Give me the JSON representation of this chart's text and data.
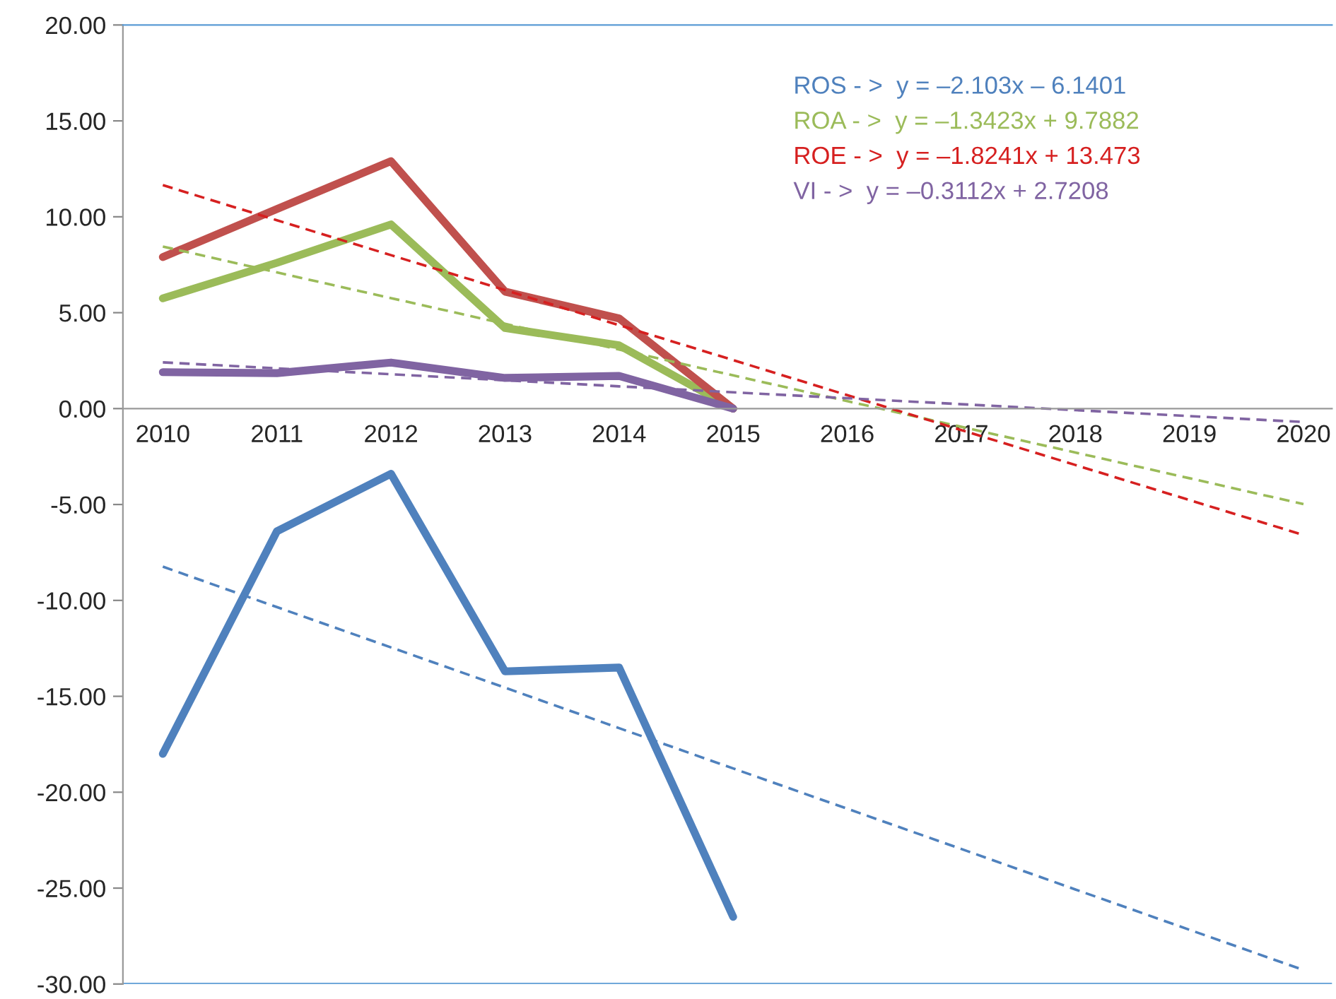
{
  "chart_data": {
    "type": "line",
    "categories": [
      "2010",
      "2011",
      "2012",
      "2013",
      "2014",
      "2015",
      "2016",
      "2017",
      "2018",
      "2019",
      "2020"
    ],
    "series": [
      {
        "color": "#4f81bd",
        "values": [
          -18.0,
          -6.4,
          -3.4,
          -13.7,
          -13.5,
          -26.5,
          null,
          null,
          null,
          null,
          null
        ]
      },
      {
        "color": "#9bbb59",
        "values": [
          5.75,
          7.6,
          9.6,
          4.2,
          3.3,
          0.0,
          null,
          null,
          null,
          null,
          null
        ]
      },
      {
        "color": "#c0504d",
        "values": [
          7.9,
          10.4,
          12.9,
          6.1,
          4.7,
          0.0,
          null,
          null,
          null,
          null,
          null
        ]
      },
      {
        "color": "#8064a2",
        "values": [
          1.9,
          1.85,
          2.4,
          1.6,
          1.7,
          0.0,
          null,
          null,
          null,
          null,
          null
        ]
      },
      {
        "name": "ROS - >  y = –2.103x – 6.1401",
        "color": "#4f81bd",
        "line_style": "dashed",
        "values": [
          -8.24,
          -10.35,
          -12.45,
          -14.55,
          -16.66,
          -18.76,
          -20.86,
          -22.96,
          -25.07,
          -27.17,
          -29.27
        ]
      },
      {
        "name": "ROA - >  y = –1.3423x + 9.7882",
        "color": "#9bbb59",
        "line_style": "dashed",
        "values": [
          8.45,
          7.1,
          5.76,
          4.42,
          3.08,
          1.73,
          0.39,
          -0.95,
          -2.29,
          -3.63,
          -4.98
        ]
      },
      {
        "name": "ROE - >  y = –1.8241x + 13.473",
        "color": "#d62020",
        "line_style": "dashed",
        "values": [
          11.65,
          9.82,
          8.0,
          6.18,
          4.35,
          2.53,
          0.7,
          -1.12,
          -2.94,
          -4.77,
          -6.59
        ]
      },
      {
        "name": "VI - >  y = –0.3112x + 2.7208",
        "color": "#8064a2",
        "line_style": "dashed",
        "values": [
          2.41,
          2.1,
          1.79,
          1.48,
          1.16,
          0.85,
          0.54,
          0.23,
          -0.08,
          -0.39,
          -0.7
        ]
      }
    ],
    "ylim": [
      -30,
      20
    ],
    "yticks": [
      {
        "value": -30,
        "label": "-30.00"
      },
      {
        "value": -25,
        "label": "-25.00"
      },
      {
        "value": -20,
        "label": "-20.00"
      },
      {
        "value": -15,
        "label": "-15.00"
      },
      {
        "value": -10,
        "label": "-10.00"
      },
      {
        "value": -5,
        "label": "-5.00"
      },
      {
        "value": 0,
        "label": "0.00"
      },
      {
        "value": 5,
        "label": "5.00"
      },
      {
        "value": 10,
        "label": "10.00"
      },
      {
        "value": 15,
        "label": "15.00"
      },
      {
        "value": 20,
        "label": "20.00"
      }
    ],
    "legend": "top right",
    "grid": false,
    "marker": "none",
    "line_style": "solid"
  }
}
